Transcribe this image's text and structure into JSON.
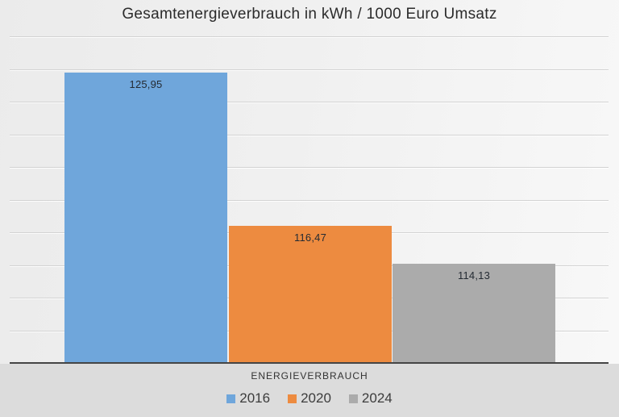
{
  "chart_data": {
    "type": "bar",
    "title": "Gesamtenergieverbrauch in kWh / 1000 Euro Umsatz",
    "xlabel": "ENERGIEVERBRAUCH",
    "ylabel": "",
    "categories": [
      "ENERGIEVERBRAUCH"
    ],
    "series": [
      {
        "name": "2016",
        "values": [
          125.95
        ],
        "label": "125,95",
        "color": "#6fa6db"
      },
      {
        "name": "2020",
        "values": [
          116.47
        ],
        "label": "116,47",
        "color": "#ed8b40"
      },
      {
        "name": "2024",
        "values": [
          114.13
        ],
        "label": "114,13",
        "color": "#ababab"
      }
    ],
    "ylim": [
      108,
      128.2
    ],
    "grid": true,
    "gridline_count": 10,
    "legend_position": "bottom",
    "value_label_format": "comma-decimal"
  },
  "colors": {
    "axis_line": "#454545",
    "gridline": "#d2d2d2",
    "background_lower": "#dcdcdc",
    "background_upper": "#f0f0f0",
    "title_text": "#2b2b2b",
    "value_label_text": "#242b33",
    "legend_text": "#3c3c3c"
  }
}
